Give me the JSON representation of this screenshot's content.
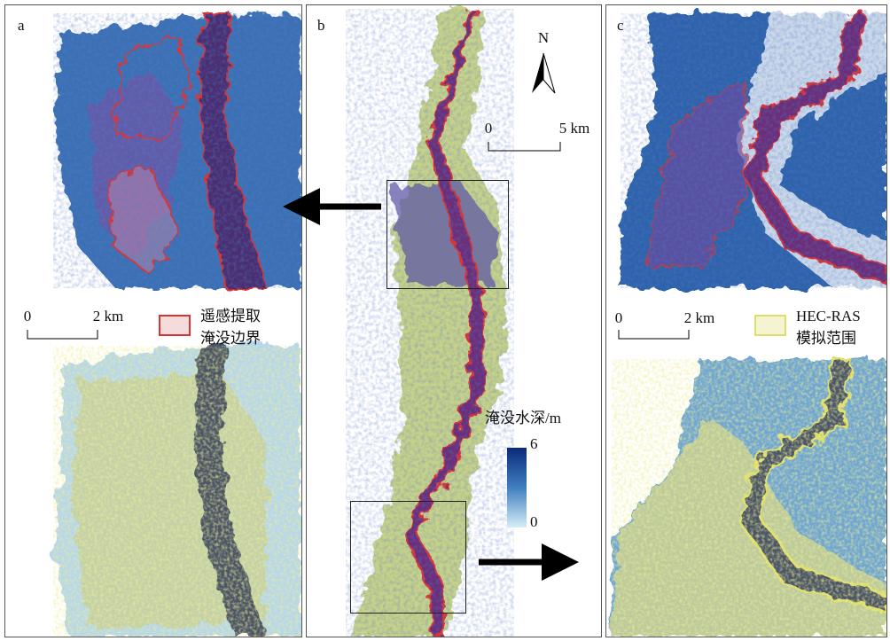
{
  "panels": [
    {
      "label": "a",
      "scale_bar": {
        "start": "0",
        "end": "2 km"
      },
      "legend": [
        "遥感提取",
        "淹没边界"
      ]
    },
    {
      "label": "b",
      "north": "N",
      "scale_bar": {
        "start": "0",
        "end": "5 km"
      },
      "colorbar": {
        "title": "淹没水深/m",
        "max": 6,
        "min": 0
      }
    },
    {
      "label": "c",
      "scale_bar": {
        "start": "0",
        "end": "2 km"
      },
      "legend": [
        "HEC-RAS",
        "模拟范围"
      ]
    }
  ]
}
